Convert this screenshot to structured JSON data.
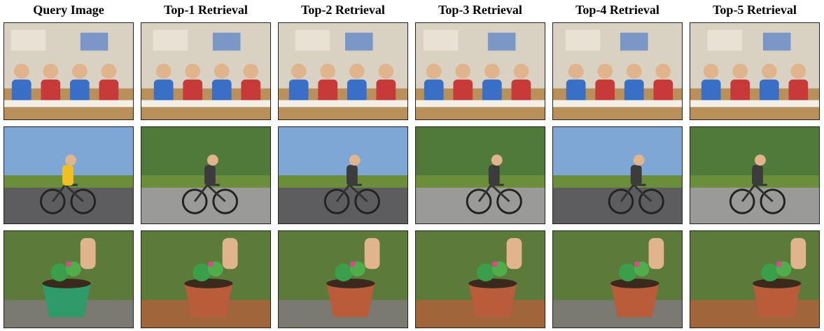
{
  "headers": [
    "Query Image",
    "Top-1 Retrieval",
    "Top-2 Retrieval",
    "Top-3 Retrieval",
    "Top-4 Retrieval",
    "Top-5 Retrieval"
  ],
  "rows": [
    {
      "scene": "classroom",
      "palette": {
        "bg": "#d9d2c3",
        "accent1": "#c83a3a",
        "accent2": "#3a6fc8",
        "floor": "#b98f5a"
      }
    },
    {
      "scene": "cycling",
      "palette": {
        "bg": "#7fa7d6",
        "accent1": "#f0c020",
        "accent2": "#3c3c3c",
        "floor": "#6b8e3a"
      }
    },
    {
      "scene": "gardening",
      "palette": {
        "bg": "#5c7a3a",
        "accent1": "#3a9e4a",
        "accent2": "#b85c3a",
        "floor": "#8a5a34"
      }
    }
  ]
}
